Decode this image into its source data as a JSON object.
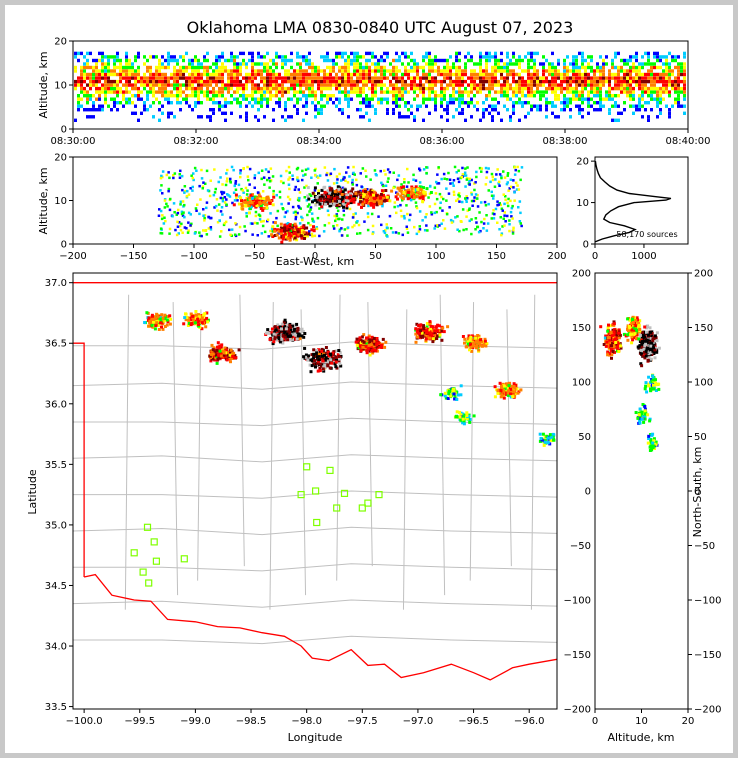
{
  "title": "Oklahoma LMA 0830-0840 UTC August 07, 2023",
  "colors": {
    "state_border": "#ff0000",
    "county_lines": "#c0c0c0",
    "station_marker": "#7fff00",
    "density_scale": [
      "#0000ff",
      "#00ccff",
      "#00ff00",
      "#ffff00",
      "#ff7f00",
      "#ff0000",
      "#800000",
      "#000000",
      "#c0c0c0"
    ]
  },
  "chart_data": [
    {
      "id": "time_height",
      "type": "heatmap",
      "xlabel": "",
      "ylabel": "Altitude, km",
      "xlim": [
        "08:30:00",
        "08:40:00"
      ],
      "ylim": [
        0,
        20
      ],
      "xticks": [
        "08:30:00",
        "08:32:00",
        "08:34:00",
        "08:36:00",
        "08:38:00",
        "08:40:00"
      ],
      "yticks": [
        "0",
        "10",
        "20"
      ],
      "source_altitude_range_km": [
        2,
        18
      ],
      "densest_altitude_km": 11
    },
    {
      "id": "ew_altitude",
      "type": "heatmap",
      "xlabel": "East-West, km",
      "ylabel": "Altitude, km",
      "xlim": [
        -200,
        200
      ],
      "ylim": [
        0,
        20
      ],
      "xticks": [
        "−200",
        "−150",
        "−100",
        "−50",
        "0",
        "50",
        "100",
        "150",
        "200"
      ],
      "yticks": [
        "0",
        "10",
        "20"
      ],
      "cores": [
        {
          "x": 15,
          "y": 11,
          "level": "max"
        },
        {
          "x": -20,
          "y": 3,
          "level": "high"
        },
        {
          "x": 45,
          "y": 11,
          "level": "high"
        },
        {
          "x": -50,
          "y": 10,
          "level": "medium"
        },
        {
          "x": 80,
          "y": 12,
          "level": "medium"
        }
      ]
    },
    {
      "id": "altitude_histogram",
      "type": "line",
      "annotation": "58,170 sources",
      "xlim": [
        0,
        1900
      ],
      "ylim": [
        0,
        21
      ],
      "xticks": [
        "0",
        "1000"
      ],
      "yticks": [
        "0",
        "10",
        "20"
      ],
      "series": [
        {
          "points": [
            [
              0,
              0.5
            ],
            [
              150,
              1.2
            ],
            [
              400,
              2
            ],
            [
              700,
              2.8
            ],
            [
              820,
              3.5
            ],
            [
              600,
              4.4
            ],
            [
              300,
              5.2
            ],
            [
              180,
              6
            ],
            [
              220,
              7
            ],
            [
              320,
              8
            ],
            [
              480,
              9
            ],
            [
              800,
              10
            ],
            [
              1450,
              10.6
            ],
            [
              1550,
              11
            ],
            [
              1200,
              11.5
            ],
            [
              700,
              12.2
            ],
            [
              450,
              13
            ],
            [
              300,
              14
            ],
            [
              200,
              15
            ],
            [
              110,
              16
            ],
            [
              70,
              17
            ],
            [
              40,
              18
            ],
            [
              20,
              19
            ],
            [
              8,
              20
            ]
          ]
        }
      ]
    },
    {
      "id": "plan_view",
      "type": "heatmap",
      "xlabel": "Longitude",
      "ylabel": "Latitude",
      "xlim": [
        -100.1,
        -95.75
      ],
      "ylim": [
        33.48,
        37.08
      ],
      "xticks": [
        "−100.0",
        "−99.5",
        "−99.0",
        "−98.5",
        "−98.0",
        "−97.5",
        "−97.0",
        "−96.5",
        "−96.0"
      ],
      "yticks": [
        "33.5",
        "34.0",
        "34.5",
        "35.0",
        "35.5",
        "36.0",
        "36.5",
        "37.0"
      ],
      "stations": [
        [
          -98.0,
          35.48
        ],
        [
          -97.79,
          35.45
        ],
        [
          -98.05,
          35.25
        ],
        [
          -97.92,
          35.28
        ],
        [
          -97.66,
          35.26
        ],
        [
          -97.35,
          35.25
        ],
        [
          -97.73,
          35.14
        ],
        [
          -97.5,
          35.14
        ],
        [
          -97.45,
          35.18
        ],
        [
          -97.91,
          35.02
        ],
        [
          -99.43,
          34.98
        ],
        [
          -99.37,
          34.86
        ],
        [
          -99.55,
          34.77
        ],
        [
          -99.35,
          34.7
        ],
        [
          -99.1,
          34.72
        ],
        [
          -99.47,
          34.61
        ],
        [
          -99.42,
          34.52
        ]
      ],
      "cores": [
        {
          "x": -98.2,
          "y": 36.6,
          "level": "max"
        },
        {
          "x": -97.85,
          "y": 36.38,
          "level": "max"
        },
        {
          "x": -98.78,
          "y": 36.42,
          "level": "high"
        },
        {
          "x": -97.45,
          "y": 36.5,
          "level": "high"
        },
        {
          "x": -96.92,
          "y": 36.6,
          "level": "high"
        },
        {
          "x": -99.35,
          "y": 36.7,
          "level": "medium"
        },
        {
          "x": -99.0,
          "y": 36.7,
          "level": "medium"
        },
        {
          "x": -96.5,
          "y": 36.52,
          "level": "medium"
        },
        {
          "x": -96.2,
          "y": 36.12,
          "level": "medium"
        },
        {
          "x": -96.7,
          "y": 36.1,
          "level": "low"
        },
        {
          "x": -96.6,
          "y": 35.9,
          "level": "low"
        },
        {
          "x": -95.85,
          "y": 35.72,
          "level": "low"
        }
      ]
    },
    {
      "id": "ns_altitude",
      "type": "heatmap",
      "xlabel": "Altitude, km",
      "ylabel": "North-South, km",
      "xlim": [
        0,
        20
      ],
      "ylim": [
        -200,
        200
      ],
      "xticks": [
        "0",
        "10",
        "20"
      ],
      "yticks": [
        "−200",
        "−150",
        "−100",
        "−50",
        "0",
        "50",
        "100",
        "150",
        "200"
      ],
      "cores": [
        {
          "x": 11,
          "y": 135,
          "level": "max"
        },
        {
          "x": 3.5,
          "y": 140,
          "level": "high"
        },
        {
          "x": 8,
          "y": 150,
          "level": "medium"
        },
        {
          "x": 12,
          "y": 100,
          "level": "low"
        },
        {
          "x": 10,
          "y": 70,
          "level": "low"
        },
        {
          "x": 12,
          "y": 45,
          "level": "low"
        }
      ]
    }
  ]
}
